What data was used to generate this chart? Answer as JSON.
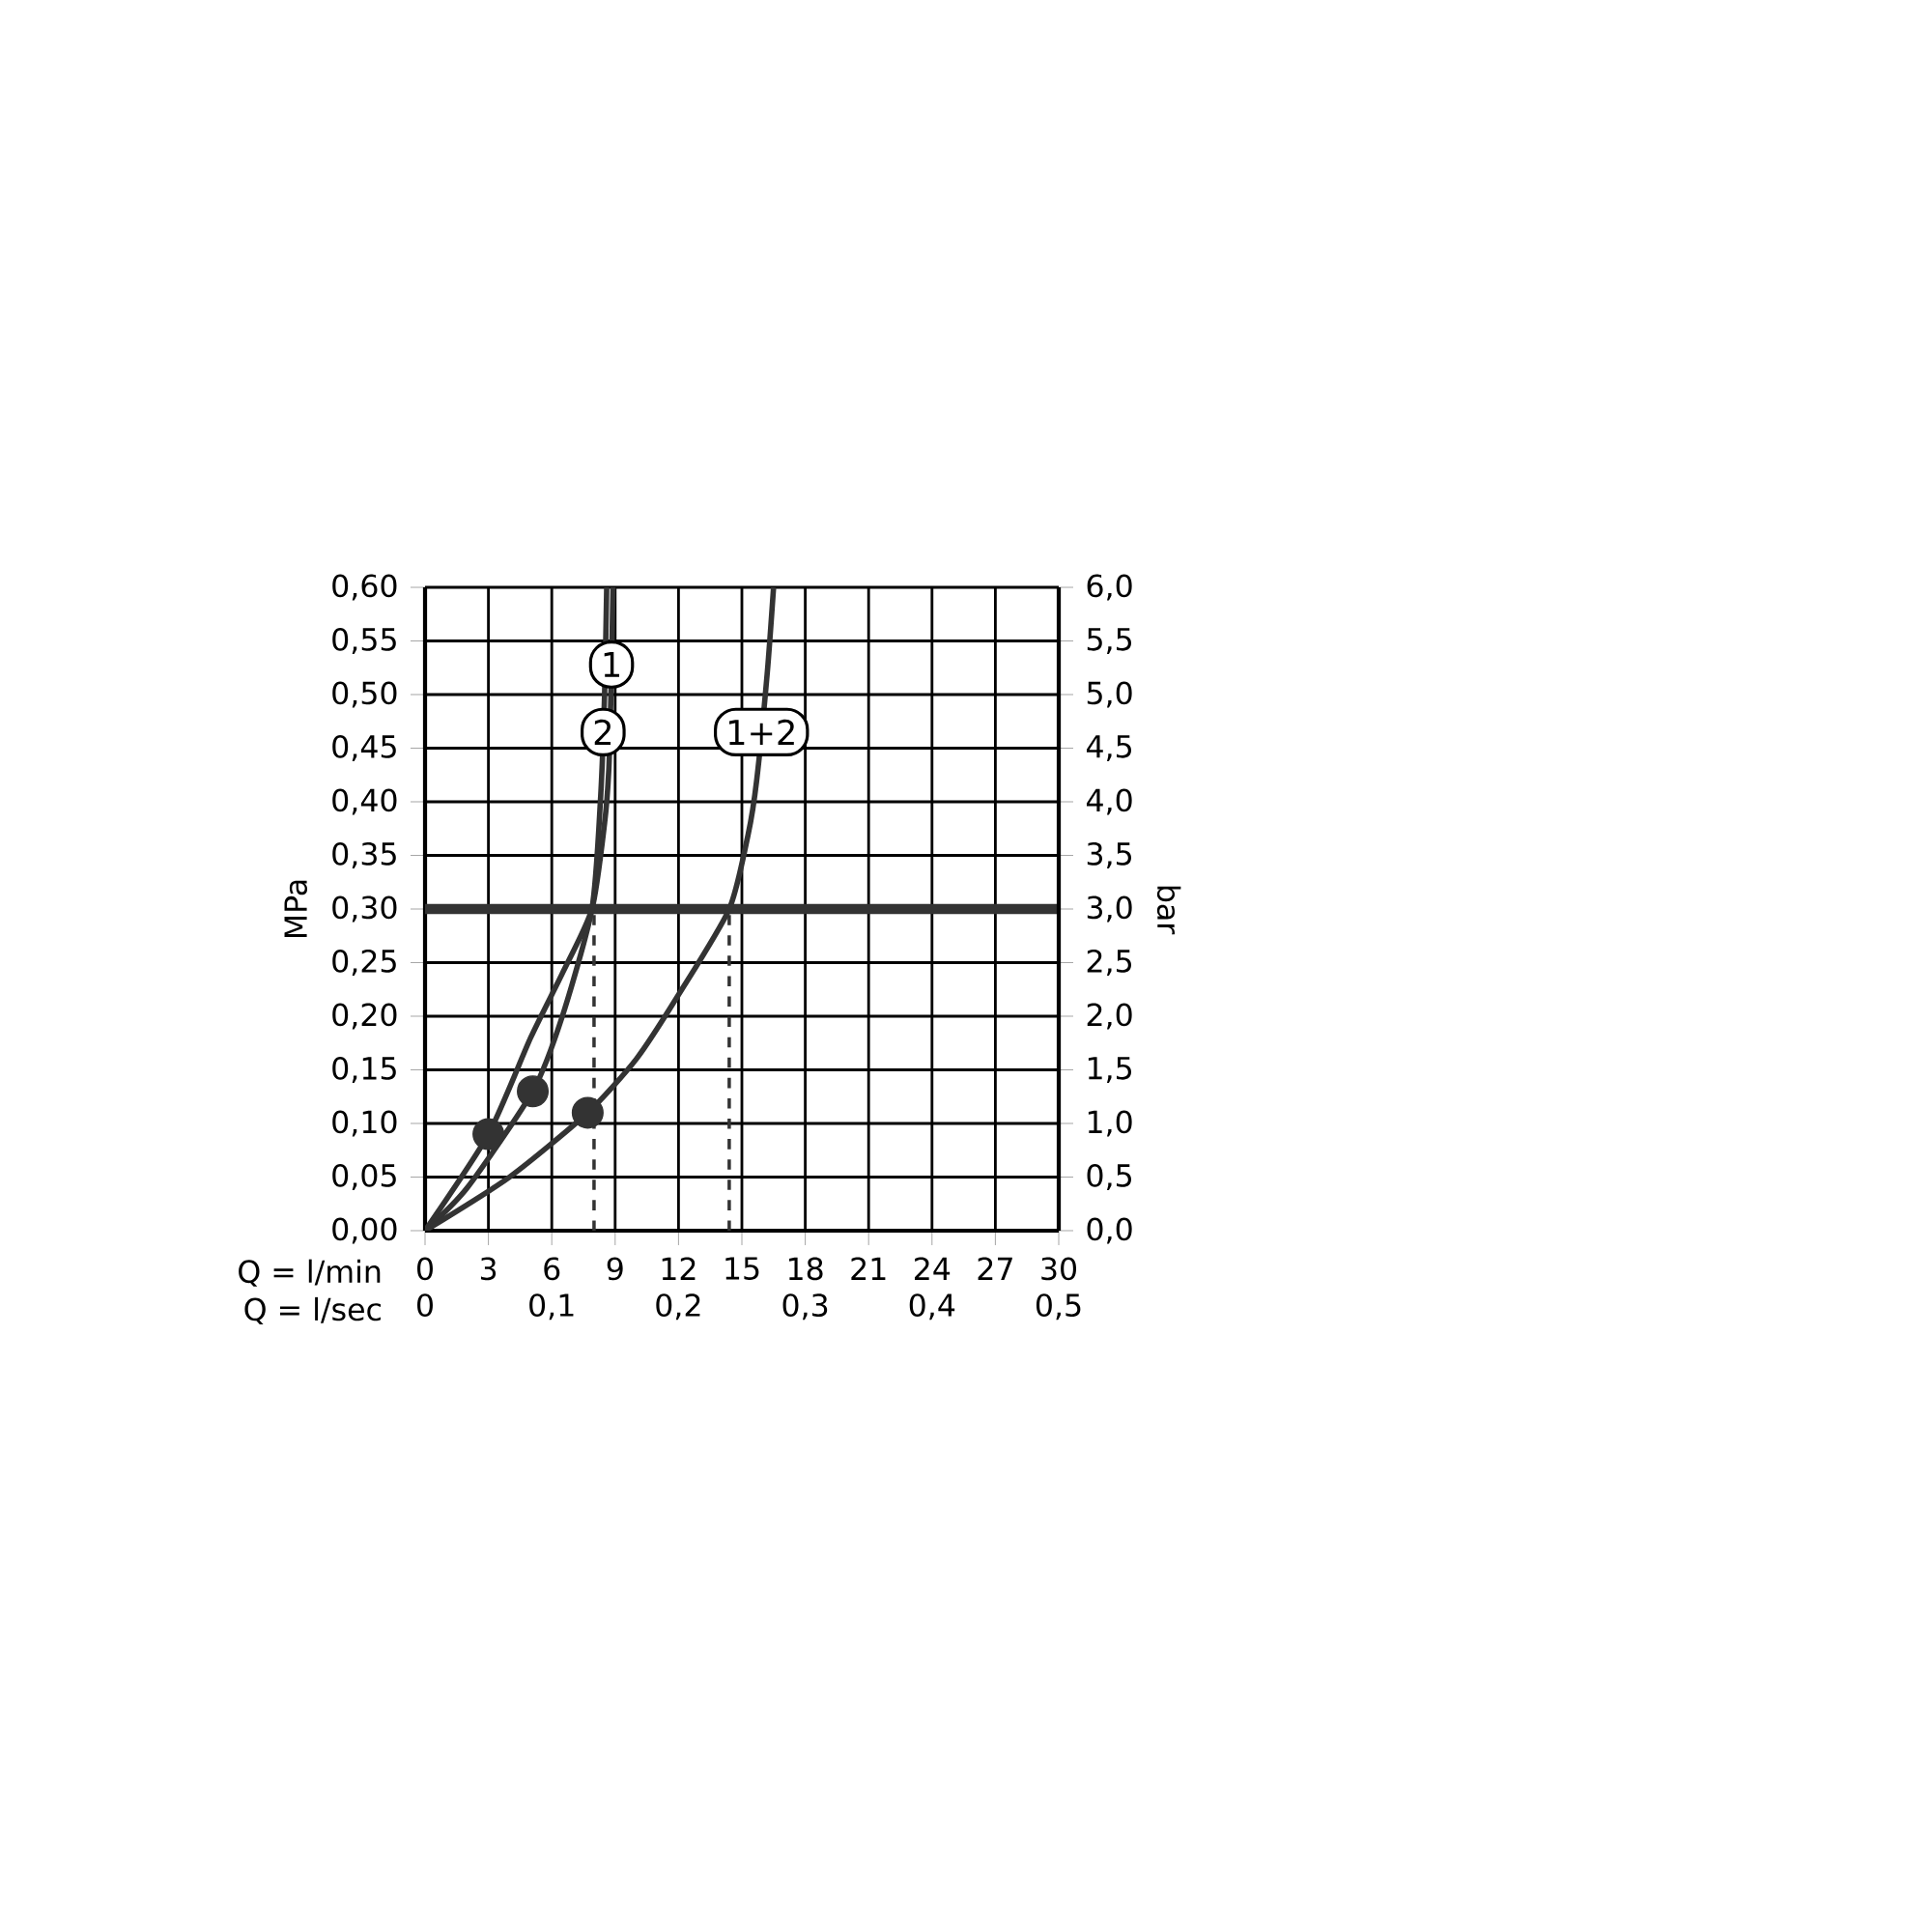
{
  "chart_data": {
    "type": "line",
    "xlabel": "Q = l/min",
    "x2label": "Q = l/sec",
    "ylabel": "MPa",
    "y2label": "bar",
    "xlim": [
      0,
      30
    ],
    "xticks": [
      0,
      3,
      6,
      9,
      12,
      15,
      18,
      21,
      24,
      27,
      30
    ],
    "x2lim": [
      0,
      0.5
    ],
    "x2ticks": [
      0,
      {
        "value": 0.1,
        "label": "0,1"
      },
      {
        "value": 0.2,
        "label": "0,2"
      },
      {
        "value": 0.3,
        "label": "0,3"
      },
      {
        "value": 0.4,
        "label": "0,4"
      },
      {
        "value": 0.5,
        "label": "0,5"
      }
    ],
    "ylim": [
      0,
      0.6
    ],
    "yticks": [
      {
        "value": 0,
        "label": "0,00"
      },
      {
        "value": 0.05,
        "label": "0,05"
      },
      {
        "value": 0.1,
        "label": "0,10"
      },
      {
        "value": 0.15,
        "label": "0,15"
      },
      {
        "value": 0.2,
        "label": "0,20"
      },
      {
        "value": 0.25,
        "label": "0,25"
      },
      {
        "value": 0.3,
        "label": "0,30"
      },
      {
        "value": 0.35,
        "label": "0,35"
      },
      {
        "value": 0.4,
        "label": "0,40"
      },
      {
        "value": 0.45,
        "label": "0,45"
      },
      {
        "value": 0.5,
        "label": "0,50"
      },
      {
        "value": 0.55,
        "label": "0,55"
      },
      {
        "value": 0.6,
        "label": "0,60"
      }
    ],
    "y2lim": [
      0,
      6
    ],
    "y2ticks": [
      {
        "value": 0,
        "label": "0,0"
      },
      {
        "value": 0.5,
        "label": "0,5"
      },
      {
        "value": 1,
        "label": "1,0"
      },
      {
        "value": 1.5,
        "label": "1,5"
      },
      {
        "value": 2,
        "label": "2,0"
      },
      {
        "value": 2.5,
        "label": "2,5"
      },
      {
        "value": 3,
        "label": "3,0"
      },
      {
        "value": 3.5,
        "label": "3,5"
      },
      {
        "value": 4,
        "label": "4,0"
      },
      {
        "value": 4.5,
        "label": "4,5"
      },
      {
        "value": 5,
        "label": "5,0"
      },
      {
        "value": 5.5,
        "label": "5,5"
      },
      {
        "value": 6,
        "label": "6,0"
      }
    ],
    "grid": true,
    "line_style": "solid",
    "series": [
      {
        "name": "1",
        "color": "#333333",
        "x": [
          0,
          3,
          5,
          6.5,
          7.9,
          8.5,
          8.7,
          8.8,
          8.9
        ],
        "values": [
          0,
          0.09,
          0.18,
          0.24,
          0.3,
          0.38,
          0.43,
          0.5,
          0.6
        ]
      },
      {
        "name": "2",
        "color": "#333333",
        "x": [
          0,
          2,
          5.1,
          6.5,
          7.9,
          8.3,
          8.5,
          8.6
        ],
        "values": [
          0,
          0.04,
          0.13,
          0.2,
          0.3,
          0.4,
          0.5,
          0.6
        ]
      },
      {
        "name": "1+2",
        "color": "#333333",
        "x": [
          0,
          4,
          7.7,
          10,
          12,
          14.4,
          15.3,
          15.7,
          16.2,
          16.5
        ],
        "values": [
          0,
          0.05,
          0.11,
          0.16,
          0.22,
          0.3,
          0.37,
          0.42,
          0.52,
          0.6
        ]
      },
      {
        "type": "scatter",
        "marker": "circle",
        "color": "#333333",
        "x": [
          3,
          5.1,
          7.7
        ],
        "values": [
          0.09,
          0.13,
          0.11
        ]
      }
    ],
    "ref_lines": [
      {
        "axis": "y",
        "value": 0.3,
        "color": "#333333"
      },
      {
        "axis": "x",
        "value": 8,
        "line_style": "dashed",
        "color": "#333333"
      },
      {
        "axis": "x",
        "value": 14.4,
        "line_style": "dashed",
        "color": "#333333"
      }
    ]
  }
}
